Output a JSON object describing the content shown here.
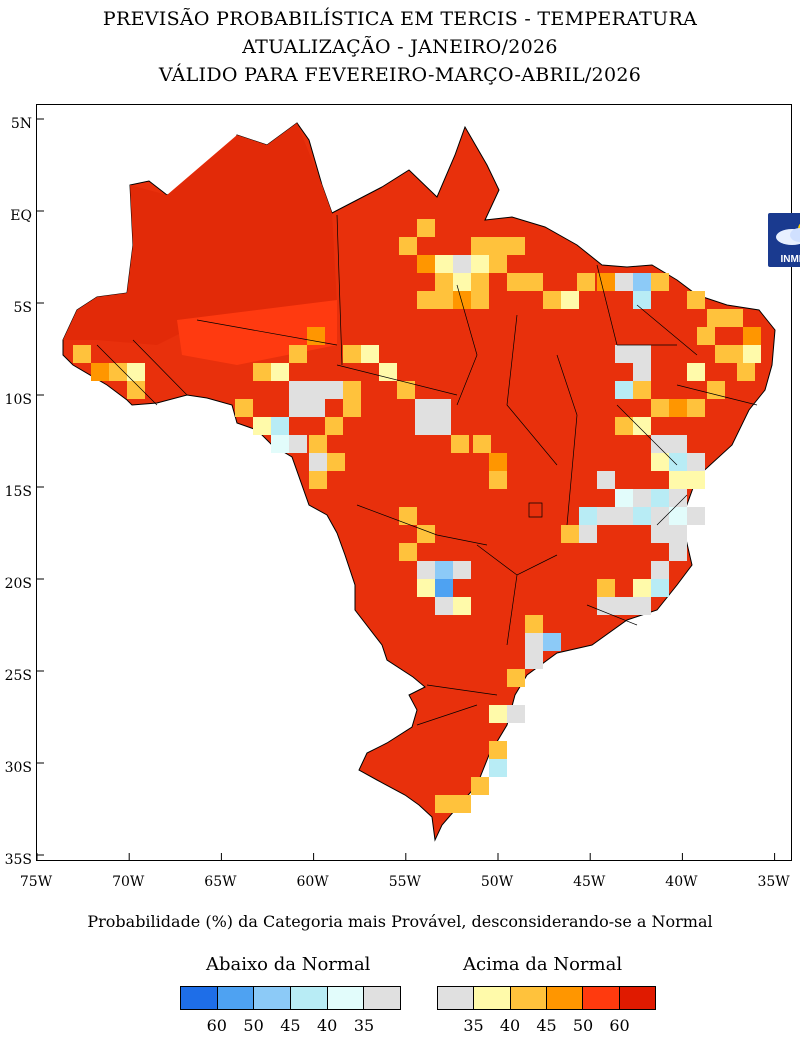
{
  "title": {
    "line1": "PREVISÃO PROBABILÍSTICA EM TERCIS - TEMPERATURA",
    "line2": "ATUALIZAÇÃO - JANEIRO/2026",
    "line3": "VÁLIDO PARA FEVEREIRO-MARÇO-ABRIL/2026"
  },
  "map": {
    "region": "Brasil",
    "lon_range": [
      -75,
      -35
    ],
    "lat_range": [
      -35,
      5
    ],
    "x_ticks": [
      "75W",
      "70W",
      "65W",
      "60W",
      "55W",
      "50W",
      "45W",
      "40W",
      "35W"
    ],
    "y_ticks": [
      "5N",
      "EQ",
      "5S",
      "10S",
      "15S",
      "20S",
      "25S",
      "30S",
      "35S"
    ],
    "dominant_category": "Acima da Normal 60",
    "logo_text": "INMET"
  },
  "caption": "Probabilidade (%) da Categoria mais Provável, desconsiderando-se a Normal",
  "legend": {
    "below": {
      "title": "Abaixo da Normal",
      "labels": [
        "60",
        "50",
        "45",
        "40",
        "35"
      ],
      "colors": [
        "#1e6ee8",
        "#4ea2f2",
        "#8ccaf7",
        "#b8ecf5",
        "#e2fcfb",
        "#e0e0e0"
      ]
    },
    "above": {
      "title": "Acima da Normal",
      "labels": [
        "35",
        "40",
        "45",
        "50",
        "60"
      ],
      "colors": [
        "#e0e0e0",
        "#fffaaa",
        "#ffc23c",
        "#ff9600",
        "#ff3a0e",
        "#e01a00"
      ]
    }
  }
}
